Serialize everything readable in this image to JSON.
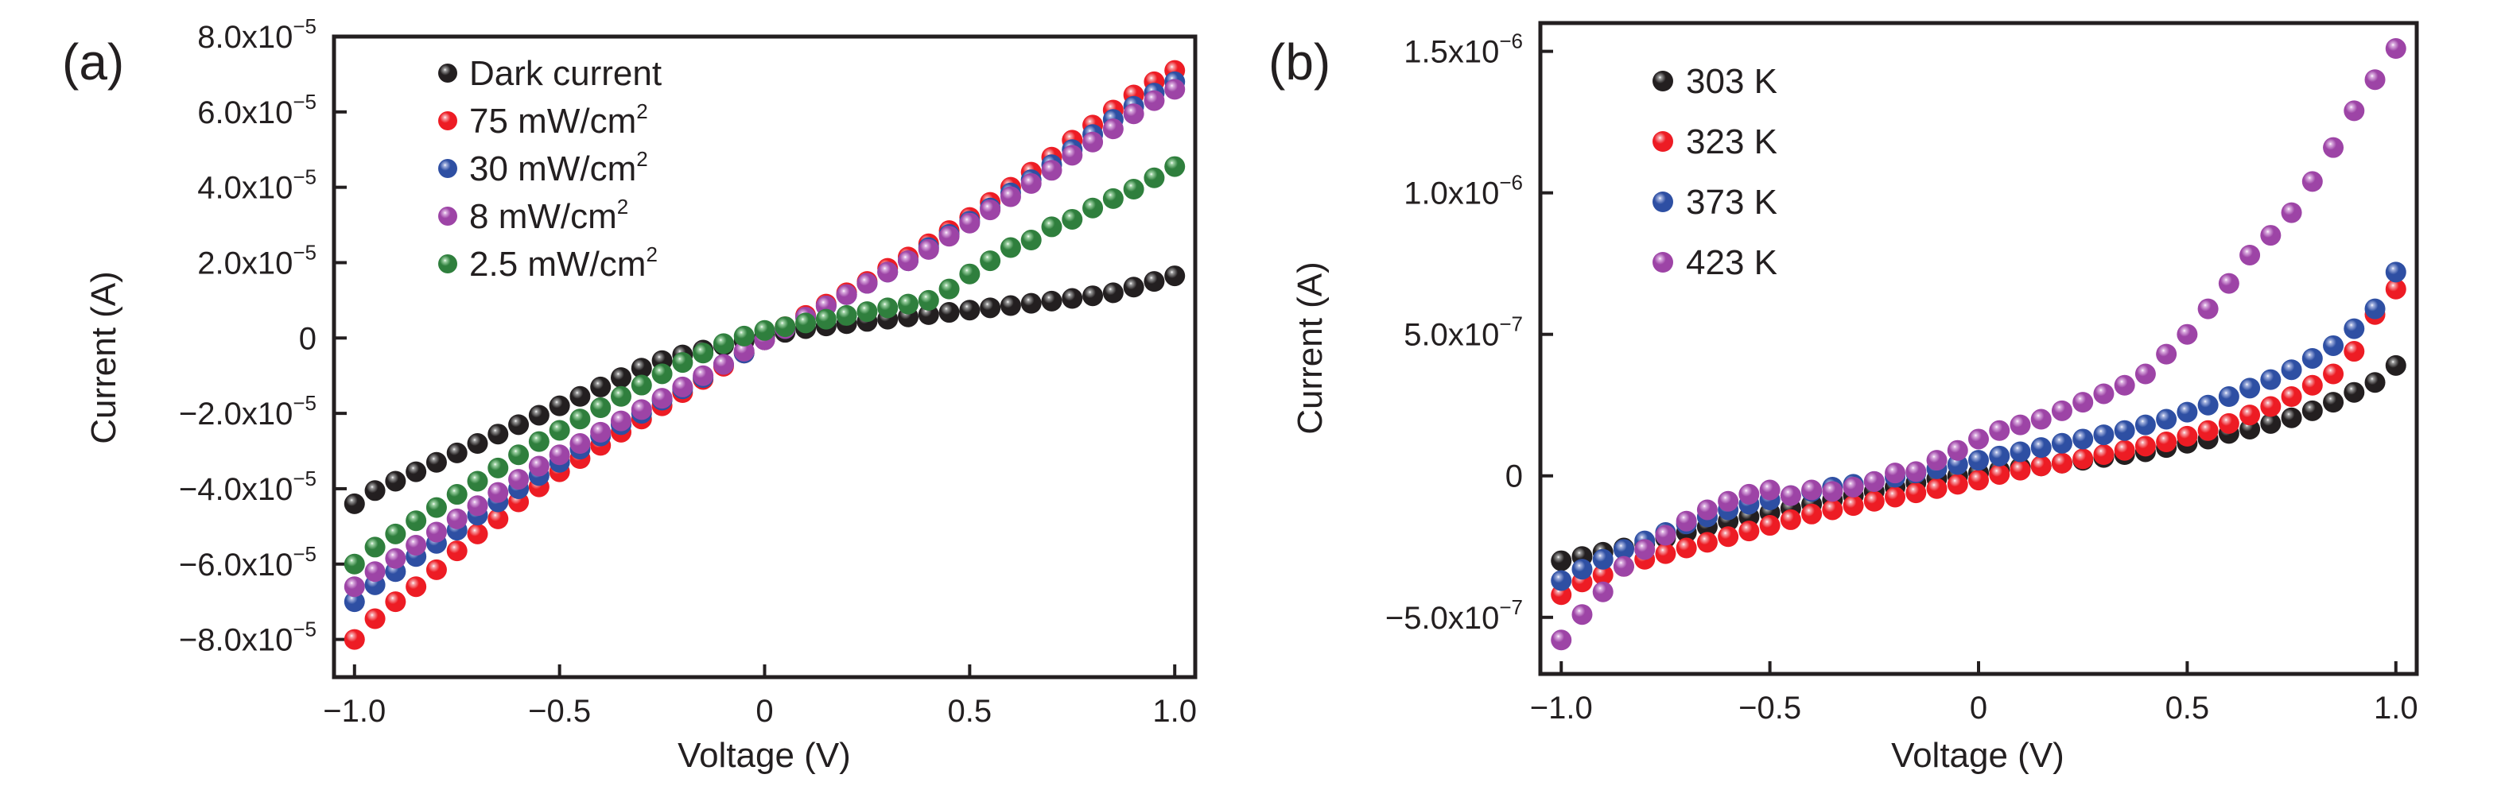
{
  "figure": {
    "panels": [
      "(a)",
      "(b)"
    ]
  },
  "chart_data": [
    {
      "id": "a",
      "panel_label": "(a)",
      "type": "scatter",
      "title": "",
      "xlabel": "Voltage (V)",
      "ylabel": "Current (A)",
      "xlim": [
        -1.05,
        1.05
      ],
      "ylim": [
        -9e-05,
        8e-05
      ],
      "grid": false,
      "legend_position": "top-left",
      "x_ticks": [
        {
          "value": -1.0,
          "label": "−1.0"
        },
        {
          "value": -0.5,
          "label": "−0.5"
        },
        {
          "value": 0,
          "label": "0"
        },
        {
          "value": 0.5,
          "label": "0.5"
        },
        {
          "value": 1.0,
          "label": "1.0"
        }
      ],
      "y_ticks": [
        {
          "value": 8e-05,
          "mantissa": "8.0x10",
          "exp": "−5"
        },
        {
          "value": 6e-05,
          "mantissa": "6.0x10",
          "exp": "−5"
        },
        {
          "value": 4e-05,
          "mantissa": "4.0x10",
          "exp": "−5"
        },
        {
          "value": 2e-05,
          "mantissa": "2.0x10",
          "exp": "−5"
        },
        {
          "value": 0,
          "mantissa": "0",
          "exp": ""
        },
        {
          "value": -2e-05,
          "mantissa": "−2.0x10",
          "exp": "−5"
        },
        {
          "value": -4e-05,
          "mantissa": "−4.0x10",
          "exp": "−5"
        },
        {
          "value": -6e-05,
          "mantissa": "−6.0x10",
          "exp": "−5"
        },
        {
          "value": -8e-05,
          "mantissa": "−8.0x10",
          "exp": "−5"
        }
      ],
      "x": [
        -1.0,
        -0.95,
        -0.9,
        -0.85,
        -0.8,
        -0.75,
        -0.7,
        -0.65,
        -0.6,
        -0.55,
        -0.5,
        -0.45,
        -0.4,
        -0.35,
        -0.3,
        -0.25,
        -0.2,
        -0.15,
        -0.1,
        -0.05,
        0.0,
        0.05,
        0.1,
        0.15,
        0.2,
        0.25,
        0.3,
        0.35,
        0.4,
        0.45,
        0.5,
        0.55,
        0.6,
        0.65,
        0.7,
        0.75,
        0.8,
        0.85,
        0.9,
        0.95,
        1.0
      ],
      "y_scale": 1e-05,
      "series": [
        {
          "name": "Dark current",
          "legend_text": "Dark current",
          "legend_sup": "",
          "color": "#231f20",
          "highlight": "#9a9a9a",
          "values": [
            -4.4,
            -4.05,
            -3.8,
            -3.55,
            -3.3,
            -3.05,
            -2.8,
            -2.55,
            -2.3,
            -2.05,
            -1.8,
            -1.55,
            -1.3,
            -1.05,
            -0.8,
            -0.6,
            -0.45,
            -0.32,
            -0.2,
            -0.08,
            0.05,
            0.15,
            0.25,
            0.32,
            0.38,
            0.44,
            0.5,
            0.56,
            0.62,
            0.68,
            0.74,
            0.8,
            0.86,
            0.92,
            0.98,
            1.05,
            1.12,
            1.2,
            1.35,
            1.5,
            1.65
          ]
        },
        {
          "name": "75 mW/cm2",
          "legend_text": "75 mW/cm",
          "legend_sup": "2",
          "color": "#ed1c24",
          "highlight": "#f7a6ab",
          "values": [
            -8.0,
            -7.45,
            -7.0,
            -6.6,
            -6.15,
            -5.65,
            -5.2,
            -4.8,
            -4.35,
            -3.95,
            -3.55,
            -3.2,
            -2.85,
            -2.5,
            -2.15,
            -1.8,
            -1.45,
            -1.1,
            -0.75,
            -0.4,
            -0.05,
            0.3,
            0.6,
            0.9,
            1.2,
            1.5,
            1.85,
            2.15,
            2.5,
            2.85,
            3.2,
            3.6,
            4.0,
            4.4,
            4.8,
            5.25,
            5.65,
            6.05,
            6.45,
            6.8,
            7.1
          ]
        },
        {
          "name": "30 mW/cm2",
          "legend_text": "30 mW/cm",
          "legend_sup": "2",
          "color": "#2e4fa3",
          "highlight": "#a6b4e0",
          "values": [
            -7.0,
            -6.55,
            -6.2,
            -5.8,
            -5.45,
            -5.1,
            -4.7,
            -4.35,
            -4.0,
            -3.65,
            -3.3,
            -2.95,
            -2.6,
            -2.3,
            -2.0,
            -1.65,
            -1.35,
            -1.05,
            -0.7,
            -0.4,
            -0.05,
            0.25,
            0.55,
            0.85,
            1.15,
            1.45,
            1.75,
            2.05,
            2.4,
            2.75,
            3.1,
            3.45,
            3.85,
            4.2,
            4.6,
            5.0,
            5.4,
            5.8,
            6.15,
            6.5,
            6.8
          ]
        },
        {
          "name": "8 mW/cm2",
          "legend_text": "8 mW/cm",
          "legend_sup": "2",
          "color": "#9d44a6",
          "highlight": "#dcb0e1",
          "values": [
            -6.6,
            -6.2,
            -5.85,
            -5.5,
            -5.15,
            -4.8,
            -4.45,
            -4.1,
            -3.75,
            -3.4,
            -3.1,
            -2.8,
            -2.5,
            -2.2,
            -1.9,
            -1.6,
            -1.3,
            -1.0,
            -0.7,
            -0.35,
            -0.05,
            0.25,
            0.55,
            0.85,
            1.15,
            1.45,
            1.75,
            2.05,
            2.35,
            2.7,
            3.05,
            3.4,
            3.75,
            4.1,
            4.45,
            4.85,
            5.2,
            5.55,
            5.95,
            6.3,
            6.6
          ]
        },
        {
          "name": "2.5 mW/cm2",
          "legend_text": "2.5 mW/cm",
          "legend_sup": "2",
          "color": "#2f7f3d",
          "highlight": "#9ed2a4",
          "values": [
            -6.0,
            -5.55,
            -5.2,
            -4.85,
            -4.5,
            -4.15,
            -3.8,
            -3.45,
            -3.1,
            -2.75,
            -2.45,
            -2.15,
            -1.85,
            -1.55,
            -1.25,
            -0.95,
            -0.65,
            -0.4,
            -0.15,
            0.05,
            0.2,
            0.3,
            0.4,
            0.5,
            0.6,
            0.7,
            0.8,
            0.9,
            1.0,
            1.3,
            1.7,
            2.05,
            2.4,
            2.6,
            2.95,
            3.15,
            3.45,
            3.7,
            3.95,
            4.25,
            4.55
          ]
        }
      ]
    },
    {
      "id": "b",
      "panel_label": "(b)",
      "type": "scatter",
      "title": "",
      "xlabel": "Voltage (V)",
      "ylabel": "Current (A)",
      "xlim": [
        -1.05,
        1.05
      ],
      "ylim": [
        -7e-07,
        1.6e-06
      ],
      "grid": false,
      "legend_position": "top-left",
      "x_ticks": [
        {
          "value": -1.0,
          "label": "−1.0"
        },
        {
          "value": -0.5,
          "label": "−0.5"
        },
        {
          "value": 0,
          "label": "0"
        },
        {
          "value": 0.5,
          "label": "0.5"
        },
        {
          "value": 1.0,
          "label": "1.0"
        }
      ],
      "y_ticks": [
        {
          "value": 1.5e-06,
          "mantissa": "1.5x10",
          "exp": "−6"
        },
        {
          "value": 1e-06,
          "mantissa": "1.0x10",
          "exp": "−6"
        },
        {
          "value": 5e-07,
          "mantissa": "5.0x10",
          "exp": "−7"
        },
        {
          "value": 0,
          "mantissa": "0",
          "exp": ""
        },
        {
          "value": -5e-07,
          "mantissa": "−5.0x10",
          "exp": "−7"
        }
      ],
      "x": [
        -1.0,
        -0.95,
        -0.9,
        -0.85,
        -0.8,
        -0.75,
        -0.7,
        -0.65,
        -0.6,
        -0.55,
        -0.5,
        -0.45,
        -0.4,
        -0.35,
        -0.3,
        -0.25,
        -0.2,
        -0.15,
        -0.1,
        -0.05,
        0.0,
        0.05,
        0.1,
        0.15,
        0.2,
        0.25,
        0.3,
        0.35,
        0.4,
        0.45,
        0.5,
        0.55,
        0.6,
        0.65,
        0.7,
        0.75,
        0.8,
        0.85,
        0.9,
        0.95,
        1.0
      ],
      "y_scale": 1e-07,
      "series": [
        {
          "name": "303 K",
          "legend_text": "303 K",
          "legend_sup": "",
          "color": "#231f20",
          "highlight": "#9a9a9a",
          "values": [
            -3.0,
            -2.85,
            -2.7,
            -2.55,
            -2.4,
            -2.2,
            -2.0,
            -1.8,
            -1.6,
            -1.45,
            -1.3,
            -1.15,
            -1.0,
            -0.85,
            -0.7,
            -0.55,
            -0.4,
            -0.25,
            -0.1,
            0.0,
            0.1,
            0.2,
            0.3,
            0.35,
            0.45,
            0.55,
            0.65,
            0.75,
            0.85,
            1.0,
            1.15,
            1.3,
            1.5,
            1.65,
            1.85,
            2.05,
            2.3,
            2.6,
            2.95,
            3.3,
            3.9
          ]
        },
        {
          "name": "323 K",
          "legend_text": "323 K",
          "legend_sup": "",
          "color": "#ed1c24",
          "highlight": "#f7a6ab",
          "values": [
            -4.2,
            -3.75,
            -3.5,
            -3.2,
            -2.95,
            -2.75,
            -2.55,
            -2.35,
            -2.15,
            -1.95,
            -1.75,
            -1.55,
            -1.35,
            -1.2,
            -1.05,
            -0.9,
            -0.75,
            -0.6,
            -0.45,
            -0.3,
            -0.15,
            0.05,
            0.2,
            0.35,
            0.45,
            0.6,
            0.75,
            0.9,
            1.05,
            1.2,
            1.4,
            1.6,
            1.85,
            2.15,
            2.45,
            2.8,
            3.2,
            3.6,
            4.4,
            5.7,
            6.6
          ]
        },
        {
          "name": "373 K",
          "legend_text": "373 K",
          "legend_sup": "",
          "color": "#2e4fa3",
          "highlight": "#a6b4e0",
          "values": [
            -3.7,
            -3.3,
            -2.95,
            -2.6,
            -2.3,
            -2.0,
            -1.7,
            -1.45,
            -1.2,
            -1.0,
            -0.85,
            -0.7,
            -0.55,
            -0.4,
            -0.3,
            -0.2,
            -0.05,
            0.1,
            0.25,
            0.4,
            0.55,
            0.7,
            0.85,
            1.0,
            1.15,
            1.3,
            1.45,
            1.6,
            1.8,
            2.0,
            2.25,
            2.5,
            2.8,
            3.1,
            3.4,
            3.75,
            4.15,
            4.6,
            5.2,
            5.9,
            7.2
          ]
        },
        {
          "name": "423 K",
          "legend_text": "423 K",
          "legend_sup": "",
          "color": "#9d44a6",
          "highlight": "#dcb0e1",
          "values": [
            -5.8,
            -4.9,
            -4.1,
            -3.2,
            -2.6,
            -2.1,
            -1.6,
            -1.2,
            -0.9,
            -0.65,
            -0.5,
            -0.7,
            -0.5,
            -0.55,
            -0.4,
            -0.2,
            0.1,
            0.15,
            0.55,
            0.9,
            1.3,
            1.6,
            1.8,
            2.0,
            2.3,
            2.6,
            2.9,
            3.2,
            3.6,
            4.3,
            5.0,
            5.9,
            6.8,
            7.8,
            8.5,
            9.3,
            10.4,
            11.6,
            12.9,
            14.0,
            15.1
          ]
        }
      ]
    }
  ]
}
